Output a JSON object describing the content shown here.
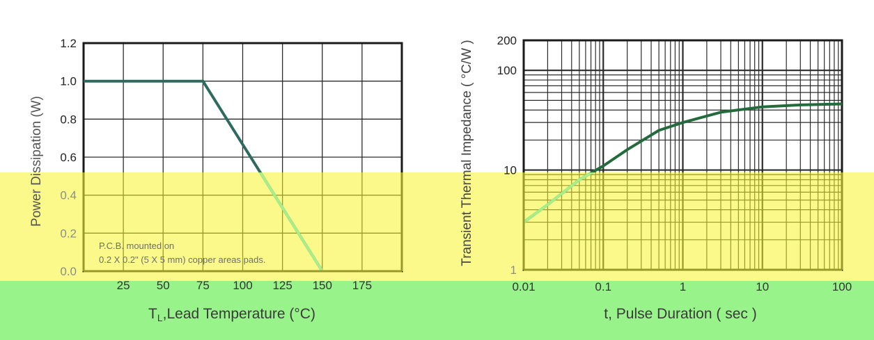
{
  "chart_data": [
    {
      "type": "line",
      "xlabel_main": "T",
      "xlabel_sub": "L",
      "xlabel_rest": ",Lead Temperature (°C)",
      "ylabel": "Power Dissipation (W)",
      "annotation": [
        "P.C.B. mounted on",
        "0.2 X 0.2\" (5 X 5 mm) copper areas pads."
      ],
      "xlim": [
        0,
        200
      ],
      "ylim": [
        0,
        1.2
      ],
      "x_ticks": [
        0,
        25,
        50,
        75,
        100,
        125,
        150,
        175,
        200
      ],
      "x_tick_labels": [
        "",
        "25",
        "50",
        "75",
        "100",
        "125",
        "150",
        "175",
        ""
      ],
      "y_ticks": [
        0,
        0.2,
        0.4,
        0.6,
        0.8,
        1.0,
        1.2
      ],
      "y_tick_labels": [
        "0.0",
        "0.2",
        "0.4",
        "0.6",
        "0.8",
        "1.0",
        "1.2"
      ],
      "grid": true,
      "series": [
        {
          "x": [
            0,
            75,
            150
          ],
          "y": [
            1.0,
            1.0,
            0.0
          ]
        }
      ]
    },
    {
      "type": "line",
      "xlabel": "t, Pulse Duration ( sec )",
      "ylabel": "Transient Thermal Impedance ( °C/W )",
      "x_scale": "log",
      "y_scale": "log",
      "xlim": [
        0.01,
        100
      ],
      "ylim": [
        1,
        200
      ],
      "x_ticks": [
        0.01,
        0.1,
        1,
        10,
        100
      ],
      "x_tick_labels": [
        "0.01",
        "0.1",
        "1",
        "10",
        "100"
      ],
      "y_ticks": [
        1,
        10,
        100,
        200
      ],
      "y_tick_labels": [
        "1",
        "10",
        "100",
        "200"
      ],
      "grid": true,
      "series": [
        {
          "x": [
            0.01,
            0.02,
            0.05,
            0.1,
            0.2,
            0.5,
            1,
            3,
            10,
            30,
            100
          ],
          "y": [
            3,
            4.5,
            8,
            11,
            16,
            25,
            30,
            38,
            43,
            45,
            46
          ]
        }
      ]
    }
  ],
  "colors": {
    "band_top": "#ffffff",
    "band_mid": "#fbf98a",
    "band_bot": "#98f48a",
    "curve_top": "#2e6b5e",
    "curve_mid": "#a7ee8a",
    "curve_right_top": "#236b3c",
    "axis": "#1a1a1a"
  }
}
